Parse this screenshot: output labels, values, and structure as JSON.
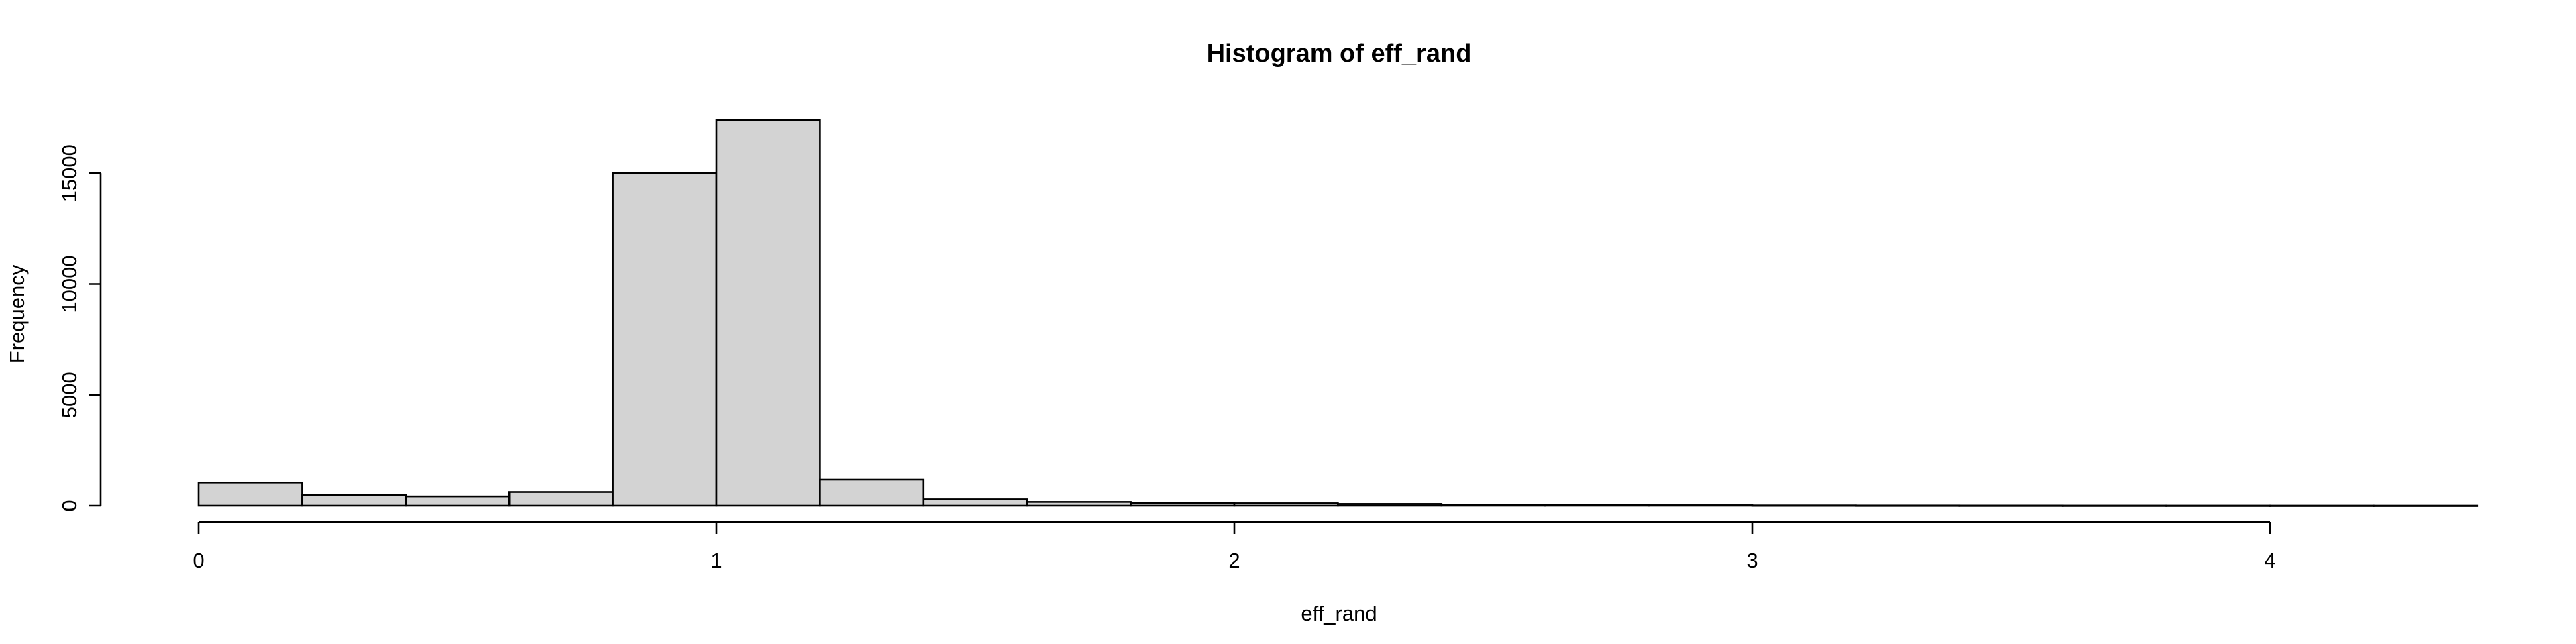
{
  "chart_data": {
    "type": "bar",
    "title": "Histogram of eff_rand",
    "xlabel": "eff_rand",
    "ylabel": "Frequency",
    "bin_width": 0.2,
    "bins_start": [
      0.0,
      0.2,
      0.4,
      0.6,
      0.8,
      1.0,
      1.2,
      1.4,
      1.6,
      1.8,
      2.0,
      2.2,
      2.4,
      2.6,
      2.8,
      3.0,
      3.2,
      3.4,
      3.6,
      3.8,
      4.0,
      4.2
    ],
    "values": [
      1050,
      480,
      420,
      620,
      15000,
      17400,
      1180,
      290,
      170,
      130,
      110,
      80,
      50,
      30,
      20,
      12,
      8,
      6,
      4,
      3,
      2,
      1
    ],
    "xlim": [
      0,
      4.4
    ],
    "ylim": [
      0,
      17400
    ],
    "xticks": [
      0,
      1,
      2,
      3,
      4
    ],
    "xtick_labels": [
      "0",
      "1",
      "2",
      "3",
      "4"
    ],
    "yticks": [
      0,
      5000,
      10000,
      15000
    ],
    "ytick_labels": [
      "0",
      "5000",
      "10000",
      "15000"
    ],
    "grid": false,
    "legend": "none",
    "bar_fill": "#d3d3d3",
    "bar_stroke": "#000000"
  }
}
